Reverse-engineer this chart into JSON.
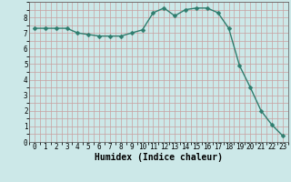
{
  "x": [
    0,
    1,
    2,
    3,
    4,
    5,
    6,
    7,
    8,
    9,
    10,
    11,
    12,
    13,
    14,
    15,
    16,
    17,
    18,
    19,
    20,
    21,
    22,
    23
  ],
  "y": [
    7.3,
    7.3,
    7.3,
    7.3,
    7.0,
    6.9,
    6.8,
    6.8,
    6.8,
    7.0,
    7.2,
    8.3,
    8.6,
    8.1,
    8.5,
    8.6,
    8.6,
    8.3,
    7.3,
    4.9,
    3.5,
    2.0,
    1.1,
    0.4
  ],
  "line_color": "#2e7d6e",
  "marker_color": "#2e7d6e",
  "bg_color": "#cce8e8",
  "grid_color_major": "#c8a0a0",
  "grid_color_minor": "#c8a0a0",
  "xlabel": "Humidex (Indice chaleur)",
  "xlim": [
    -0.5,
    23.5
  ],
  "ylim": [
    0,
    9
  ],
  "yticks": [
    0,
    1,
    2,
    3,
    4,
    5,
    6,
    7,
    8
  ],
  "xticks": [
    0,
    1,
    2,
    3,
    4,
    5,
    6,
    7,
    8,
    9,
    10,
    11,
    12,
    13,
    14,
    15,
    16,
    17,
    18,
    19,
    20,
    21,
    22,
    23
  ],
  "xlabel_fontsize": 7,
  "tick_fontsize": 5.5,
  "linewidth": 1.0,
  "markersize": 2.5
}
